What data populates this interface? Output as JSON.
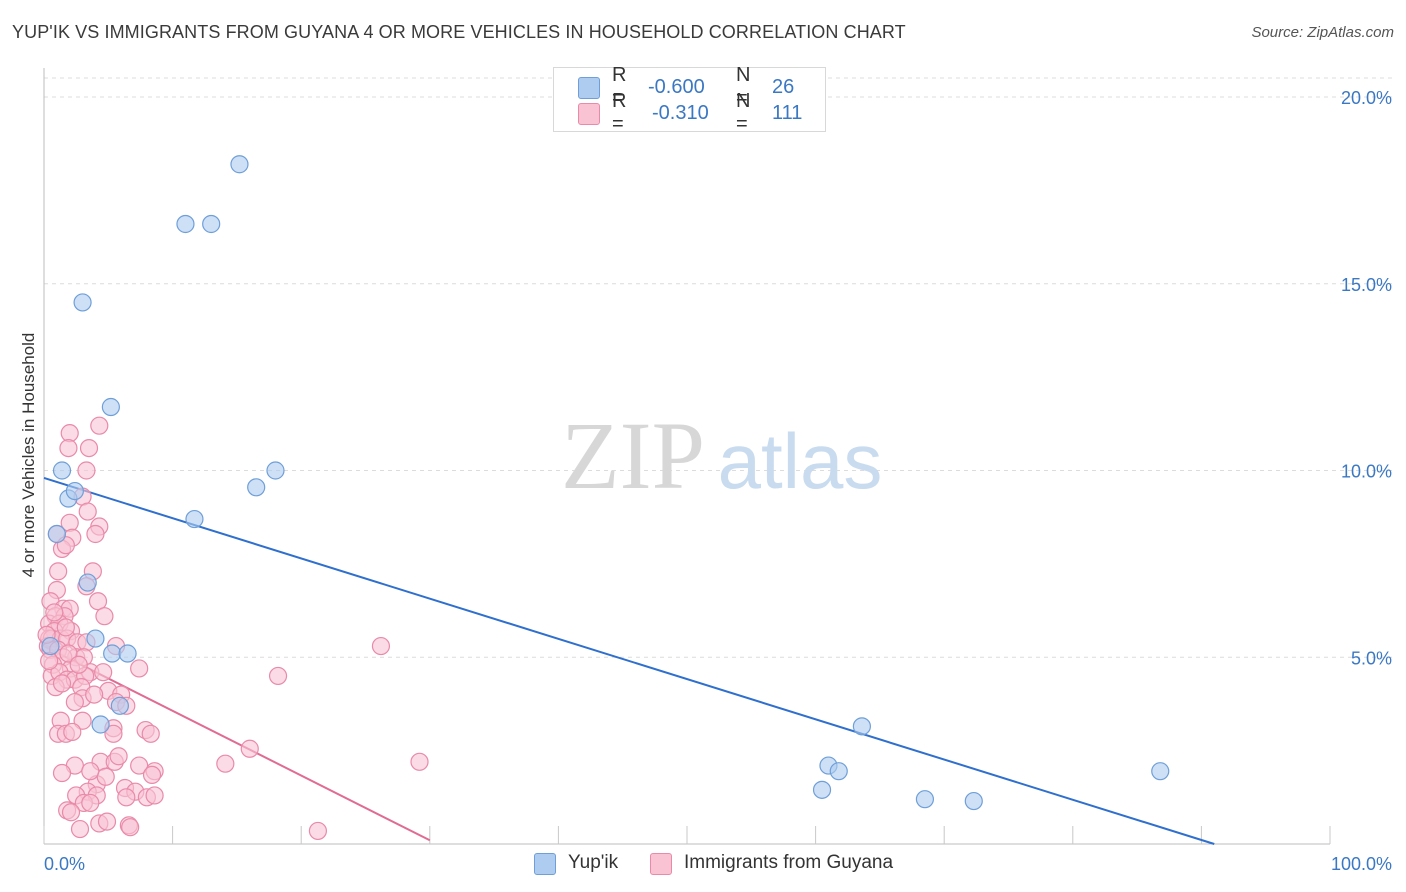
{
  "title": "YUP'IK VS IMMIGRANTS FROM GUYANA 4 OR MORE VEHICLES IN HOUSEHOLD CORRELATION CHART",
  "source": "Source: ZipAtlas.com",
  "watermark": {
    "zip": "ZIP",
    "atlas": "atlas"
  },
  "legend": {
    "rows": [
      {
        "r_label": "R =",
        "r_value": "-0.600",
        "n_label": "N =",
        "n_value": "26",
        "color": "#aecbf0",
        "border": "#6f9fd8"
      },
      {
        "r_label": "R =",
        "r_value": "-0.310",
        "n_label": "N =",
        "n_value": "111",
        "color": "#f9c3d4",
        "border": "#e98aa9"
      }
    ]
  },
  "bottom_legend": [
    {
      "label": "Yup'ik",
      "color": "#aecbf0",
      "border": "#6f9fd8"
    },
    {
      "label": "Immigrants from Guyana",
      "color": "#f9c3d4",
      "border": "#e98aa9"
    }
  ],
  "chart_data": {
    "type": "scatter",
    "title": "YUP'IK VS IMMIGRANTS FROM GUYANA 4 OR MORE VEHICLES IN HOUSEHOLD CORRELATION CHART",
    "xlabel": "",
    "ylabel": "4 or more Vehicles in Household",
    "xlim": [
      0,
      100
    ],
    "ylim": [
      0,
      20
    ],
    "x_tick_labels": [
      "0.0%",
      "100.0%"
    ],
    "y_ticks": [
      5,
      10,
      15,
      20
    ],
    "y_tick_labels": [
      "5.0%",
      "10.0%",
      "15.0%",
      "20.0%"
    ],
    "grid": true,
    "legend_position": "top-center",
    "series": [
      {
        "name": "Yup'ik",
        "color": "#6f9fd8",
        "fill": "#aecbf0",
        "line_color": "#2f6fcd",
        "trend": {
          "x0": 0,
          "y0": 9.8,
          "x1": 91,
          "y1": 0.0
        },
        "points": [
          [
            15.2,
            18.2
          ],
          [
            11.0,
            16.6
          ],
          [
            13.0,
            16.6
          ],
          [
            3.0,
            14.5
          ],
          [
            5.2,
            11.7
          ],
          [
            1.4,
            10.0
          ],
          [
            18.0,
            10.0
          ],
          [
            1.9,
            9.25
          ],
          [
            2.4,
            9.45
          ],
          [
            16.5,
            9.55
          ],
          [
            11.7,
            8.7
          ],
          [
            1.0,
            8.3
          ],
          [
            3.4,
            7.0
          ],
          [
            4.0,
            5.5
          ],
          [
            5.3,
            5.1
          ],
          [
            6.5,
            5.1
          ],
          [
            4.4,
            3.2
          ],
          [
            5.9,
            3.7
          ],
          [
            63.6,
            3.15
          ],
          [
            61.0,
            2.1
          ],
          [
            61.8,
            1.95
          ],
          [
            86.8,
            1.95
          ],
          [
            60.5,
            1.45
          ],
          [
            68.5,
            1.2
          ],
          [
            72.3,
            1.15
          ],
          [
            0.5,
            5.3
          ]
        ]
      },
      {
        "name": "Immigrants from Guyana",
        "color": "#e98aa9",
        "fill": "#f9c3d4",
        "line_color": "#e06b93",
        "trend": {
          "x0": 0,
          "y0": 5.3,
          "x1": 30,
          "y1": 0.1
        },
        "points": [
          [
            2.0,
            11.0
          ],
          [
            4.3,
            11.2
          ],
          [
            1.9,
            10.6
          ],
          [
            3.5,
            10.6
          ],
          [
            3.3,
            10.0
          ],
          [
            3.0,
            9.3
          ],
          [
            3.4,
            8.9
          ],
          [
            2.0,
            8.6
          ],
          [
            4.3,
            8.5
          ],
          [
            1.0,
            8.3
          ],
          [
            2.2,
            8.2
          ],
          [
            4.0,
            8.3
          ],
          [
            1.4,
            7.9
          ],
          [
            1.7,
            8.0
          ],
          [
            3.8,
            7.3
          ],
          [
            1.1,
            7.3
          ],
          [
            3.3,
            6.9
          ],
          [
            1.0,
            6.8
          ],
          [
            0.5,
            6.5
          ],
          [
            4.2,
            6.5
          ],
          [
            1.5,
            6.3
          ],
          [
            2.0,
            6.3
          ],
          [
            0.9,
            6.1
          ],
          [
            1.6,
            6.1
          ],
          [
            4.7,
            6.1
          ],
          [
            0.4,
            5.9
          ],
          [
            1.2,
            5.9
          ],
          [
            0.8,
            5.7
          ],
          [
            2.1,
            5.7
          ],
          [
            0.4,
            5.5
          ],
          [
            0.6,
            5.5
          ],
          [
            1.3,
            5.5
          ],
          [
            1.8,
            5.5
          ],
          [
            2.6,
            5.4
          ],
          [
            3.3,
            5.4
          ],
          [
            0.3,
            5.3
          ],
          [
            0.5,
            5.2
          ],
          [
            1.1,
            5.2
          ],
          [
            2.5,
            5.0
          ],
          [
            1.5,
            5.0
          ],
          [
            3.1,
            5.0
          ],
          [
            5.6,
            5.3
          ],
          [
            26.2,
            5.3
          ],
          [
            0.7,
            4.8
          ],
          [
            2.1,
            4.7
          ],
          [
            3.6,
            4.6
          ],
          [
            4.6,
            4.6
          ],
          [
            7.4,
            4.7
          ],
          [
            18.2,
            4.5
          ],
          [
            0.6,
            4.5
          ],
          [
            1.2,
            4.6
          ],
          [
            1.8,
            4.4
          ],
          [
            2.4,
            4.4
          ],
          [
            3.2,
            4.5
          ],
          [
            0.9,
            4.2
          ],
          [
            2.9,
            4.2
          ],
          [
            5.0,
            4.1
          ],
          [
            6.0,
            4.0
          ],
          [
            3.0,
            3.9
          ],
          [
            2.4,
            3.8
          ],
          [
            5.6,
            3.8
          ],
          [
            6.4,
            3.7
          ],
          [
            3.0,
            3.3
          ],
          [
            1.3,
            3.3
          ],
          [
            5.4,
            3.1
          ],
          [
            1.1,
            2.95
          ],
          [
            1.7,
            2.95
          ],
          [
            7.9,
            3.05
          ],
          [
            8.3,
            2.95
          ],
          [
            5.4,
            2.95
          ],
          [
            16.0,
            2.55
          ],
          [
            4.4,
            2.2
          ],
          [
            5.5,
            2.2
          ],
          [
            2.4,
            2.1
          ],
          [
            7.4,
            2.1
          ],
          [
            14.1,
            2.15
          ],
          [
            29.2,
            2.2
          ],
          [
            1.4,
            1.9
          ],
          [
            8.6,
            1.95
          ],
          [
            8.4,
            1.85
          ],
          [
            4.1,
            1.6
          ],
          [
            6.3,
            1.5
          ],
          [
            3.4,
            1.4
          ],
          [
            7.1,
            1.4
          ],
          [
            2.5,
            1.3
          ],
          [
            4.1,
            1.3
          ],
          [
            6.4,
            1.25
          ],
          [
            8.0,
            1.25
          ],
          [
            8.6,
            1.3
          ],
          [
            3.1,
            1.1
          ],
          [
            3.6,
            1.1
          ],
          [
            1.8,
            0.9
          ],
          [
            2.1,
            0.85
          ],
          [
            4.3,
            0.55
          ],
          [
            4.9,
            0.6
          ],
          [
            6.6,
            0.5
          ],
          [
            2.8,
            0.4
          ],
          [
            21.3,
            0.35
          ],
          [
            6.7,
            0.45
          ],
          [
            0.8,
            6.2
          ],
          [
            1.7,
            5.8
          ],
          [
            0.2,
            5.6
          ],
          [
            1.9,
            5.1
          ],
          [
            2.7,
            4.8
          ],
          [
            0.4,
            4.9
          ],
          [
            3.9,
            4.0
          ],
          [
            2.2,
            3.0
          ],
          [
            1.4,
            4.3
          ],
          [
            4.8,
            1.8
          ],
          [
            3.6,
            1.95
          ],
          [
            5.8,
            2.35
          ]
        ]
      }
    ]
  }
}
